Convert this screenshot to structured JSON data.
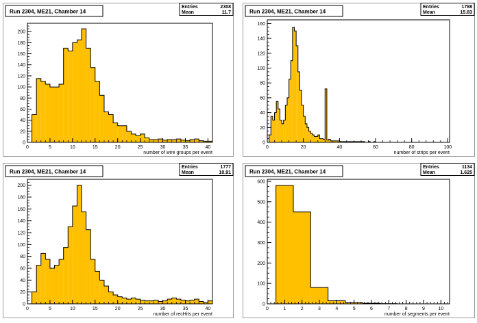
{
  "chart_data": [
    {
      "type": "bar",
      "title": "Run 2304, ME21, Chamber 14",
      "stats": {
        "entries_label": "Entries",
        "entries": "2308",
        "mean_label": "Mean",
        "mean": "11.7"
      },
      "xlabel": "number of wire groups per event",
      "xlim": [
        0,
        41
      ],
      "ylim": [
        0,
        215
      ],
      "xticks": [
        0,
        5,
        10,
        15,
        20,
        25,
        30,
        35,
        40
      ],
      "yticks": [
        0,
        20,
        40,
        60,
        80,
        100,
        120,
        140,
        160,
        180,
        200
      ],
      "bin_width": 1,
      "x_start": 1,
      "values": [
        50,
        115,
        110,
        105,
        100,
        100,
        105,
        170,
        165,
        180,
        185,
        205,
        170,
        135,
        110,
        85,
        55,
        50,
        35,
        30,
        30,
        20,
        15,
        12,
        15,
        8,
        5,
        5,
        6,
        4,
        5,
        5,
        6,
        4,
        3,
        5,
        6,
        3,
        2,
        2
      ],
      "color": "#ffc000"
    },
    {
      "type": "bar",
      "title": "Run 2304, ME21, Chamber 14",
      "stats": {
        "entries_label": "Entries",
        "entries": "1788",
        "mean_label": "Mean",
        "mean": "15.83"
      },
      "xlabel": "number of strips per event",
      "xlim": [
        0,
        101
      ],
      "ylim": [
        0,
        165
      ],
      "xticks": [
        0,
        20,
        40,
        60,
        80,
        100
      ],
      "yticks": [
        0,
        20,
        40,
        60,
        80,
        100,
        120,
        140,
        160
      ],
      "bin_width": 1,
      "x_start": 1,
      "values": [
        10,
        35,
        30,
        40,
        55,
        45,
        30,
        25,
        30,
        50,
        60,
        85,
        110,
        155,
        150,
        130,
        95,
        70,
        50,
        35,
        25,
        20,
        15,
        12,
        10,
        8,
        8,
        10,
        5,
        5,
        4,
        72,
        3,
        4,
        2,
        2,
        2,
        2,
        2,
        1,
        1,
        1,
        1,
        1,
        1,
        1,
        1,
        1,
        1,
        1,
        1,
        1,
        1,
        0,
        0,
        1,
        0,
        0,
        1,
        0
      ],
      "color": "#ffc000"
    },
    {
      "type": "bar",
      "title": "Run 2304, ME21, Chamber 14",
      "stats": {
        "entries_label": "Entries",
        "entries": "1777",
        "mean_label": "Mean",
        "mean": "10.91"
      },
      "xlabel": "number of recHits per event",
      "xlim": [
        0,
        41
      ],
      "ylim": [
        0,
        210
      ],
      "xticks": [
        0,
        5,
        10,
        15,
        20,
        25,
        30,
        35,
        40
      ],
      "yticks": [
        0,
        20,
        40,
        60,
        80,
        100,
        120,
        140,
        160,
        180,
        200
      ],
      "bin_width": 1,
      "x_start": 1,
      "values": [
        20,
        65,
        85,
        75,
        60,
        65,
        75,
        95,
        130,
        165,
        200,
        155,
        125,
        75,
        55,
        40,
        30,
        20,
        15,
        12,
        10,
        8,
        10,
        8,
        6,
        5,
        5,
        6,
        4,
        5,
        8,
        10,
        8,
        6,
        5,
        6,
        8,
        4,
        2,
        5
      ],
      "color": "#ffc000"
    },
    {
      "type": "bar",
      "title": "Run 2304, ME21, Chamber 14",
      "stats": {
        "entries_label": "Entries",
        "entries": "1134",
        "mean_label": "Mean",
        "mean": "1.625"
      },
      "xlabel": "number of segments per event",
      "xlim": [
        0,
        10.5
      ],
      "ylim": [
        0,
        610
      ],
      "xticks": [
        0,
        1,
        2,
        3,
        4,
        5,
        6,
        7,
        8,
        9,
        10
      ],
      "yticks": [
        0,
        100,
        200,
        300,
        400,
        500,
        600
      ],
      "bin_width": 1,
      "x_start": 0.5,
      "values": [
        580,
        450,
        80,
        15,
        5,
        3,
        1
      ],
      "color": "#ffc000"
    }
  ]
}
